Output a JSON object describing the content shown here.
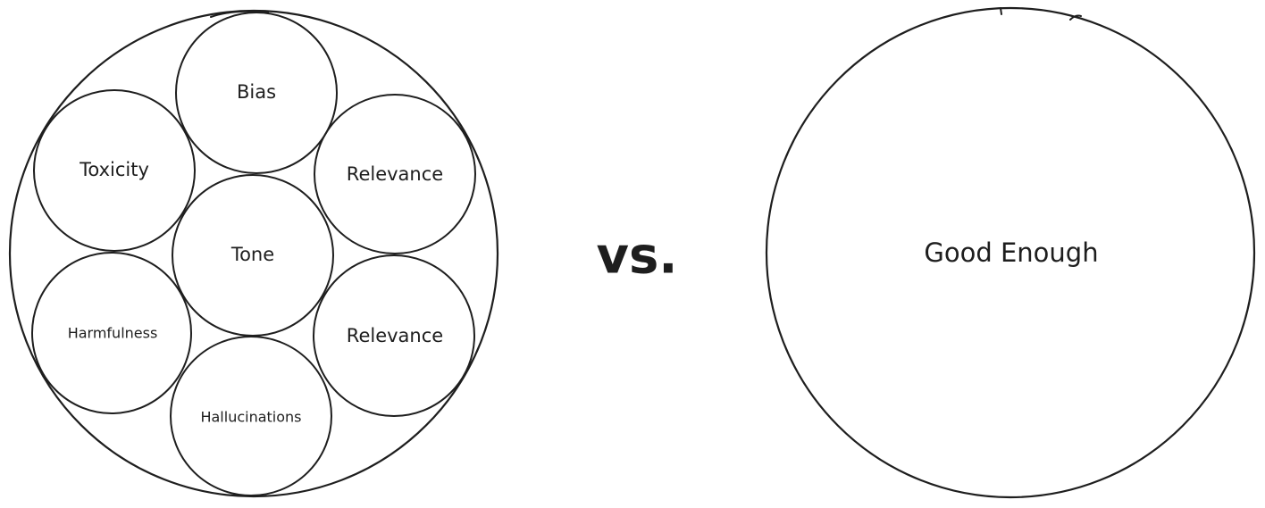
{
  "left_group": {
    "items": [
      {
        "label": "Bias"
      },
      {
        "label": "Toxicity"
      },
      {
        "label": "Relevance"
      },
      {
        "label": "Tone"
      },
      {
        "label": "Harmfulness"
      },
      {
        "label": "Relevance"
      },
      {
        "label": "Hallucinations"
      }
    ]
  },
  "separator": "vs.",
  "right_group": {
    "label": "Good Enough"
  }
}
